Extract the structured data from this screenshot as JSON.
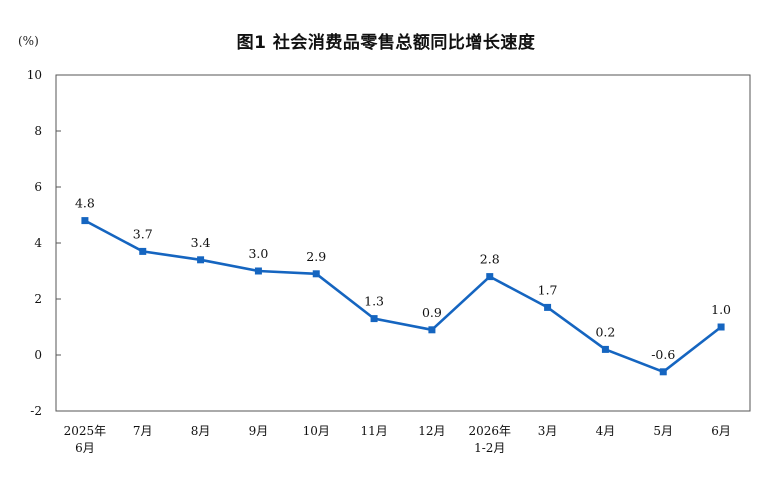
{
  "chart_data": {
    "type": "line",
    "title": "图1  社会消费品零售总额同比增长速度",
    "unit_label": "(%)",
    "categories": [
      [
        "2025年",
        "6月"
      ],
      [
        "7月"
      ],
      [
        "8月"
      ],
      [
        "9月"
      ],
      [
        "10月"
      ],
      [
        "11月"
      ],
      [
        "12月"
      ],
      [
        "2026年",
        "1-2月"
      ],
      [
        "3月"
      ],
      [
        "4月"
      ],
      [
        "5月"
      ],
      [
        "6月"
      ]
    ],
    "series": [
      {
        "values": [
          4.8,
          3.7,
          3.4,
          3.0,
          2.9,
          1.3,
          0.9,
          2.8,
          1.7,
          0.2,
          -0.6,
          1.0
        ],
        "labels": [
          "4.8",
          "3.7",
          "3.4",
          "3.0",
          "2.9",
          "1.3",
          "0.9",
          "2.8",
          "1.7",
          "0.2",
          "-0.6",
          "1.0"
        ],
        "color": "#1565c0"
      }
    ],
    "ylim": [
      -2,
      10
    ],
    "yticks": [
      -2,
      0,
      2,
      4,
      6,
      8,
      10
    ],
    "grid": false,
    "legend": "none"
  }
}
